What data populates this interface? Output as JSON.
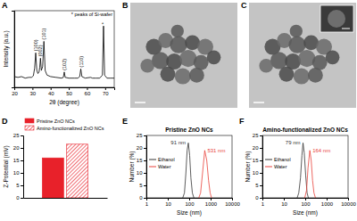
{
  "chart_data": [
    {
      "type": "line",
      "title": "A",
      "x_label": "2θ (degree)",
      "y_label": "Intensity (a.u.)",
      "xlim": [
        20,
        75
      ],
      "xticks": [
        20,
        30,
        40,
        50,
        60,
        70
      ],
      "ylim": [
        0,
        100
      ],
      "tick_labels": "x",
      "annotations": [
        "* peaks of Si-wafer"
      ],
      "peak_labels": [
        {
          "text": "(100)",
          "x": 31.8
        },
        {
          "text": "(002)",
          "x": 34.4
        },
        {
          "text": "(101)",
          "x": 36.3
        },
        {
          "text": "(102)",
          "x": 47.5
        },
        {
          "text": "(110)",
          "x": 56.6
        },
        {
          "text": "*",
          "x": 69.1
        }
      ],
      "series": [
        {
          "color": "#000000",
          "x": [
            20,
            22,
            24,
            26,
            28,
            29.5,
            30.5,
            31.2,
            31.8,
            32.4,
            33.0,
            33.6,
            34.0,
            34.4,
            34.9,
            35.6,
            36.3,
            37.0,
            38,
            40,
            43,
            46,
            47.0,
            47.5,
            48.0,
            50,
            53,
            55,
            56.0,
            56.6,
            57.2,
            59,
            62,
            63,
            65,
            67,
            68.5,
            69.1,
            69.7,
            71,
            73,
            75
          ],
          "values": [
            14,
            13,
            14,
            12,
            13,
            13,
            15,
            25,
            45,
            22,
            18,
            20,
            26,
            38,
            22,
            27,
            60,
            22,
            16,
            14,
            13,
            12,
            13,
            20,
            13,
            12,
            12,
            12,
            14,
            24,
            14,
            12,
            13,
            12,
            12,
            12,
            16,
            80,
            16,
            12,
            12,
            12
          ]
        }
      ]
    },
    {
      "type": "image",
      "title": "B"
    },
    {
      "type": "image",
      "title": "C"
    },
    {
      "type": "bar",
      "title": "D",
      "y_label": "Z-Potential (mV)",
      "categories": [
        null
      ],
      "ylim": [
        0,
        25
      ],
      "yticks": [
        0,
        5,
        10,
        15,
        20,
        25
      ],
      "tick_labels": "y",
      "legend": "top",
      "series": [
        {
          "name": "Pristine ZnO NCs",
          "color": "#e8212a",
          "values": [
            16
          ]
        },
        {
          "name": "Amino-functionalized ZnO NCs",
          "color": "#e8212a",
          "values": [
            21.5
          ]
        }
      ]
    },
    {
      "type": "line",
      "title": "E",
      "subtitle": "Pristine ZnO NCs",
      "x_label": "Size (nm)",
      "y_label": "Number (%)",
      "log": "x",
      "xlim": [
        1,
        10000
      ],
      "xticks": [
        1,
        10,
        100,
        1000,
        10000
      ],
      "ylim": [
        0,
        25
      ],
      "yticks": [
        0,
        5,
        10,
        15,
        20,
        25
      ],
      "legend": "center left",
      "series": [
        {
          "name": "Ethanol",
          "color": "#333333",
          "peak_label": "91 nm",
          "x": [
            50,
            60,
            70,
            80,
            91,
            105,
            120,
            140,
            165
          ],
          "values": [
            0,
            2,
            10,
            19,
            22,
            17,
            8,
            2,
            0
          ]
        },
        {
          "name": "Water",
          "color": "#e8413a",
          "peak_label": "531 nm",
          "x": [
            280,
            340,
            420,
            531,
            660,
            800,
            950,
            1100
          ],
          "values": [
            0,
            2,
            10,
            19,
            15,
            7,
            2,
            0
          ]
        }
      ]
    },
    {
      "type": "line",
      "title": "F",
      "subtitle": "Amino-functionalized ZnO NCs",
      "x_label": "Size (nm)",
      "y_label": "Number (%)",
      "log": "x",
      "xlim": [
        1,
        10000
      ],
      "xticks": [
        1,
        10,
        100,
        1000,
        10000
      ],
      "ylim": [
        0,
        25
      ],
      "yticks": [
        0,
        5,
        10,
        15,
        20,
        25
      ],
      "legend": "center left",
      "series": [
        {
          "name": "Ethanol",
          "color": "#333333",
          "peak_label": "79 nm",
          "x": [
            42,
            50,
            60,
            70,
            79,
            90,
            105,
            122,
            140
          ],
          "values": [
            0,
            2,
            8,
            17,
            22,
            18,
            9,
            2,
            0
          ]
        },
        {
          "name": "Water",
          "color": "#e8413a",
          "peak_label": "164 nm",
          "x": [
            95,
            115,
            135,
            164,
            190,
            220,
            255,
            300
          ],
          "values": [
            0,
            3,
            12,
            19,
            15,
            7,
            2,
            0
          ]
        }
      ]
    }
  ]
}
